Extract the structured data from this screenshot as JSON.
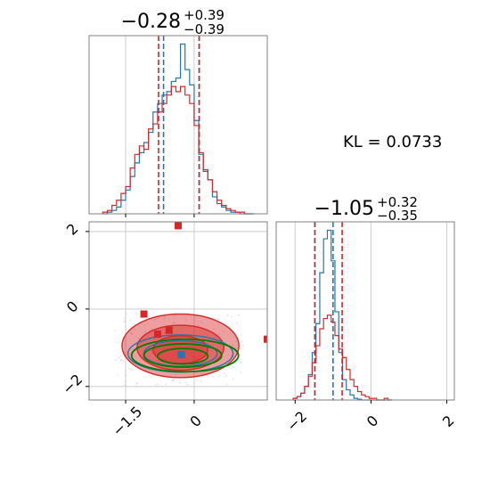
{
  "chart_data": {
    "type": "corner",
    "kl_label": "KL = 0.0733",
    "colors": {
      "blue": "#1f77b4",
      "red": "#d62728",
      "green": "#008000",
      "grid": "#cccccc",
      "spine": "#808080"
    },
    "panels": [
      {
        "id": "top-left",
        "type": "histogram",
        "title": {
          "value": "−0.28",
          "sup": "+0.39",
          "sub": "−0.39"
        },
        "xlim": [
          -2.3,
          1.6
        ],
        "xticks": [
          -1.5,
          0.0
        ],
        "grid": true,
        "vlines": {
          "blue": [
            -0.67,
            0.11
          ],
          "red": [
            -0.78,
            0.11
          ]
        },
        "bins": [
          -1.95,
          -1.85,
          -1.75,
          -1.65,
          -1.55,
          -1.45,
          -1.35,
          -1.25,
          -1.15,
          -1.05,
          -0.95,
          -0.85,
          -0.75,
          -0.65,
          -0.55,
          -0.45,
          -0.35,
          -0.25,
          -0.15,
          -0.05,
          0.05,
          0.15,
          0.25,
          0.35,
          0.45,
          0.55,
          0.65,
          0.75,
          0.85,
          0.95,
          1.05,
          1.15,
          1.25
        ],
        "series": [
          {
            "color": "blue",
            "values": [
              0,
              0.01,
              0.02,
              0.04,
              0.08,
              0.14,
              0.22,
              0.3,
              0.36,
              0.42,
              0.48,
              0.6,
              0.65,
              0.7,
              0.72,
              0.78,
              0.8,
              1.0,
              0.85,
              0.76,
              0.55,
              0.35,
              0.25,
              0.2,
              0.1,
              0.06,
              0.04,
              0.02,
              0.01,
              0.01,
              0,
              0,
              0
            ]
          },
          {
            "color": "red",
            "values": [
              0.01,
              0.02,
              0.05,
              0.08,
              0.12,
              0.16,
              0.27,
              0.35,
              0.4,
              0.38,
              0.5,
              0.53,
              0.6,
              0.65,
              0.7,
              0.75,
              0.72,
              0.75,
              0.7,
              0.65,
              0.52,
              0.36,
              0.26,
              0.2,
              0.13,
              0.08,
              0.05,
              0.03,
              0.02,
              0.01,
              0.01,
              0,
              0
            ]
          }
        ]
      },
      {
        "id": "bottom-right",
        "type": "histogram",
        "title": {
          "value": "−1.05",
          "sup": "+0.32",
          "sub": "−0.35"
        },
        "xlim": [
          -2.5,
          2.2
        ],
        "xticks": [
          -2,
          0,
          2
        ],
        "grid": true,
        "vlines": {
          "blue": [
            -1.48,
            -1.0
          ],
          "red": [
            -1.48,
            -0.76
          ]
        },
        "bins": [
          -2.0,
          -1.9,
          -1.8,
          -1.7,
          -1.6,
          -1.5,
          -1.4,
          -1.3,
          -1.2,
          -1.1,
          -1.0,
          -0.9,
          -0.8,
          -0.7,
          -0.6,
          -0.5,
          -0.4,
          -0.3,
          -0.2,
          -0.1,
          0.0,
          0.1,
          0.2,
          0.3,
          0.4,
          0.5
        ],
        "series": [
          {
            "color": "blue",
            "values": [
              0.01,
              0.02,
              0.04,
              0.08,
              0.15,
              0.28,
              0.45,
              0.75,
              0.95,
              1.0,
              0.82,
              0.52,
              0.28,
              0.12,
              0.06,
              0.03,
              0.01,
              0.005,
              0,
              0,
              0,
              0,
              0,
              0,
              0,
              0
            ]
          },
          {
            "color": "red",
            "values": [
              0.01,
              0.02,
              0.04,
              0.08,
              0.14,
              0.22,
              0.32,
              0.42,
              0.48,
              0.5,
              0.46,
              0.38,
              0.3,
              0.25,
              0.18,
              0.12,
              0.08,
              0.05,
              0.03,
              0.02,
              0.01,
              0.01,
              0,
              0,
              0.01,
              0
            ]
          }
        ]
      },
      {
        "id": "bottom-left",
        "type": "scatter-contour",
        "xlim": [
          -2.3,
          1.6
        ],
        "ylim": [
          -2.35,
          2.25
        ],
        "xticks": [
          -1.5,
          0.0
        ],
        "yticks": [
          -2,
          0,
          2
        ],
        "grid": true,
        "markers": [
          {
            "color": "red",
            "x": -0.35,
            "y": 2.15
          },
          {
            "color": "red",
            "x": -1.1,
            "y": -0.13
          },
          {
            "color": "red",
            "x": -0.55,
            "y": -0.55
          },
          {
            "color": "red",
            "x": -0.8,
            "y": -0.65
          },
          {
            "color": "red",
            "x": 1.6,
            "y": -0.78
          },
          {
            "color": "blue",
            "x": -0.28,
            "y": -1.18
          }
        ],
        "contours": [
          {
            "color": "red",
            "fill": true,
            "cx": -0.3,
            "cy": -0.95,
            "rx": 1.28,
            "ry": 0.82
          },
          {
            "color": "red",
            "fill": true,
            "cx": -0.3,
            "cy": -1.0,
            "rx": 0.95,
            "ry": 0.58
          },
          {
            "color": "red",
            "fill": true,
            "cx": -0.3,
            "cy": -1.05,
            "rx": 0.6,
            "ry": 0.36
          },
          {
            "color": "blue",
            "fill": false,
            "cx": -0.3,
            "cy": -1.15,
            "rx": 1.15,
            "ry": 0.48
          },
          {
            "color": "blue",
            "fill": false,
            "cx": -0.3,
            "cy": -1.15,
            "rx": 0.8,
            "ry": 0.33
          },
          {
            "color": "green",
            "fill": false,
            "cx": -0.2,
            "cy": -1.2,
            "rx": 1.17,
            "ry": 0.42
          },
          {
            "color": "green",
            "fill": false,
            "cx": -0.25,
            "cy": -1.2,
            "rx": 0.85,
            "ry": 0.3
          },
          {
            "color": "green",
            "fill": false,
            "cx": -0.25,
            "cy": -1.22,
            "rx": 0.55,
            "ry": 0.2
          }
        ]
      }
    ]
  }
}
